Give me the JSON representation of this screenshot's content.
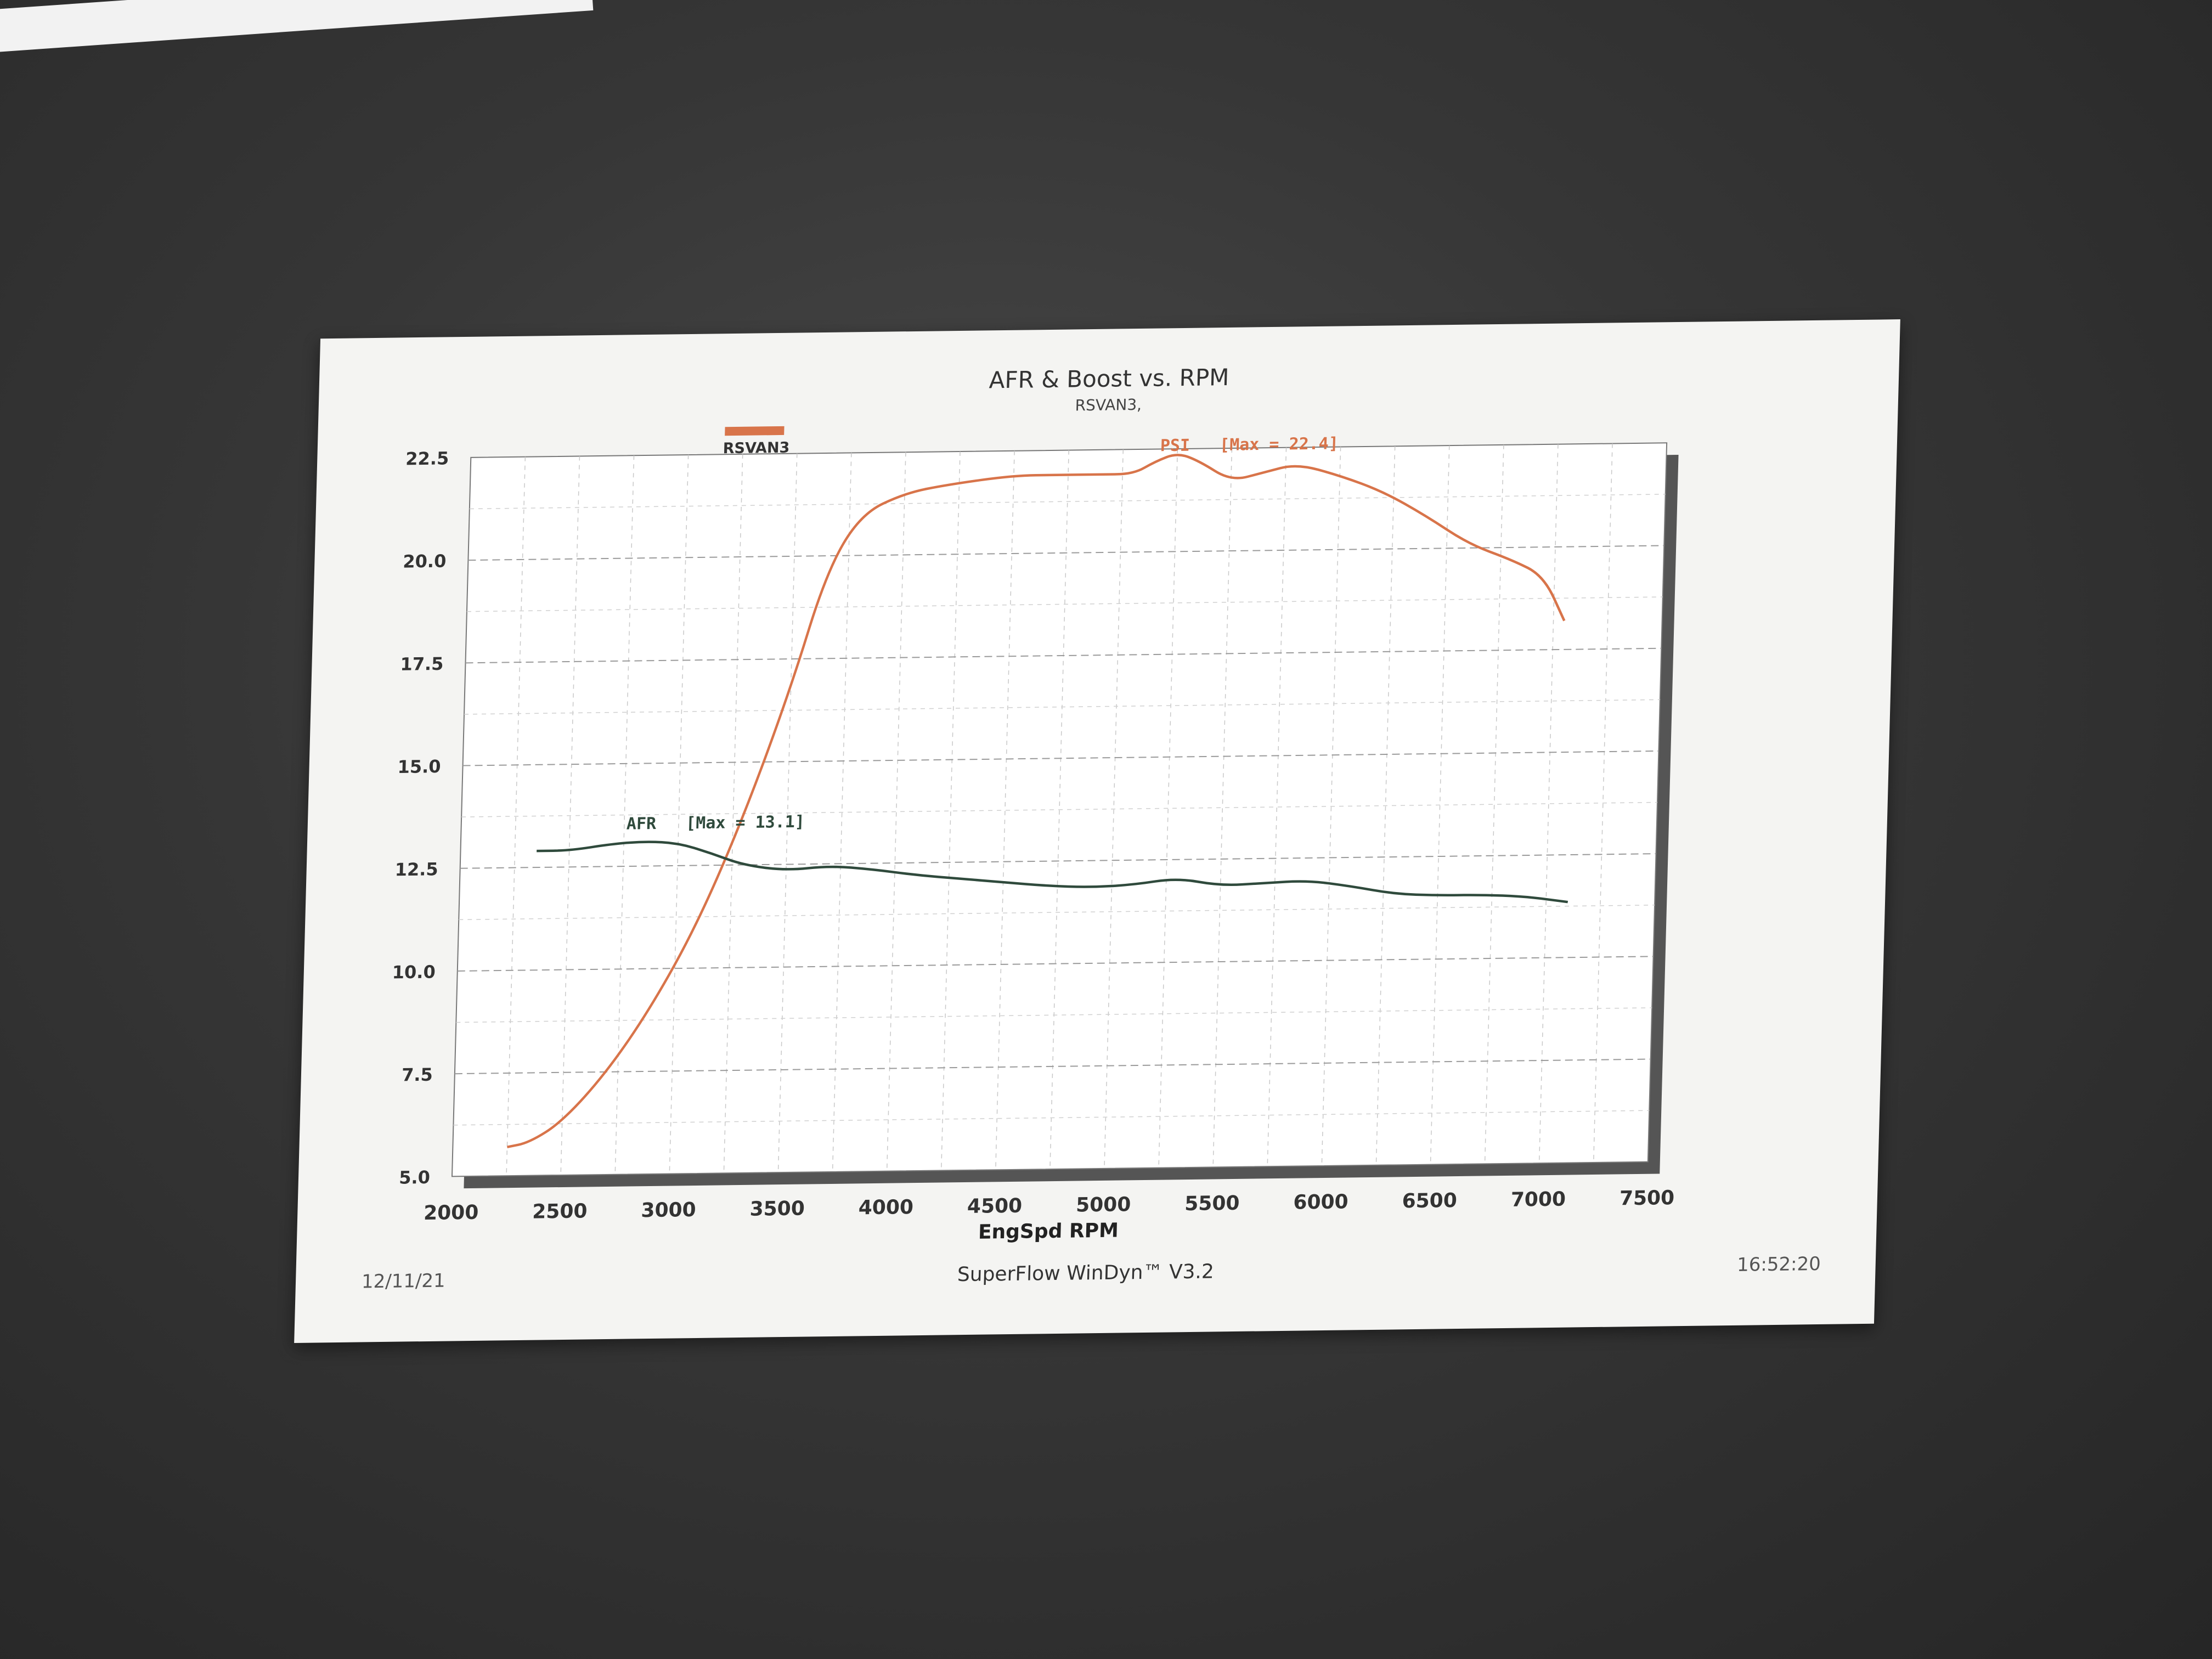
{
  "chart_data": {
    "type": "line",
    "title": "AFR & Boost vs. RPM",
    "subtitle": "RSVAN3,",
    "legend": {
      "label": "RSVAN3",
      "color": "#d8744a",
      "placement": "top-left"
    },
    "xlabel": "EngSpd RPM",
    "ylabel": "",
    "xlim": [
      2000,
      7500
    ],
    "ylim": [
      5.0,
      22.5
    ],
    "x_ticks": [
      "2000",
      "2500",
      "3000",
      "3500",
      "4000",
      "4500",
      "5000",
      "5500",
      "6000",
      "6500",
      "7000",
      "7500"
    ],
    "y_ticks": [
      "5.0",
      "7.5",
      "10.0",
      "12.5",
      "15.0",
      "17.5",
      "20.0",
      "22.5"
    ],
    "grid": true,
    "series": [
      {
        "name": "PSI",
        "color": "#d8744a",
        "annotation": "PSI   [Max = 22.4]",
        "points": [
          [
            2250,
            5.7
          ],
          [
            2350,
            5.8
          ],
          [
            2500,
            6.3
          ],
          [
            2700,
            7.5
          ],
          [
            2900,
            9.1
          ],
          [
            3100,
            11.1
          ],
          [
            3300,
            13.7
          ],
          [
            3500,
            16.8
          ],
          [
            3650,
            19.6
          ],
          [
            3800,
            21.0
          ],
          [
            4000,
            21.5
          ],
          [
            4200,
            21.7
          ],
          [
            4500,
            21.9
          ],
          [
            4700,
            21.9
          ],
          [
            4900,
            21.9
          ],
          [
            5050,
            21.9
          ],
          [
            5150,
            22.2
          ],
          [
            5250,
            22.4
          ],
          [
            5350,
            22.2
          ],
          [
            5500,
            21.7
          ],
          [
            5650,
            21.9
          ],
          [
            5800,
            22.1
          ],
          [
            6000,
            21.8
          ],
          [
            6200,
            21.4
          ],
          [
            6400,
            20.8
          ],
          [
            6600,
            20.1
          ],
          [
            6800,
            19.7
          ],
          [
            6950,
            19.3
          ],
          [
            7050,
            18.2
          ]
        ]
      },
      {
        "name": "AFR",
        "color": "#2f4a3c",
        "annotation": "AFR   [Max = 13.1]",
        "points": [
          [
            2350,
            12.9
          ],
          [
            2500,
            12.9
          ],
          [
            2700,
            13.05
          ],
          [
            2850,
            13.1
          ],
          [
            3000,
            13.05
          ],
          [
            3150,
            12.8
          ],
          [
            3300,
            12.5
          ],
          [
            3500,
            12.35
          ],
          [
            3700,
            12.45
          ],
          [
            3900,
            12.35
          ],
          [
            4100,
            12.2
          ],
          [
            4300,
            12.1
          ],
          [
            4500,
            12.0
          ],
          [
            4700,
            11.9
          ],
          [
            4900,
            11.85
          ],
          [
            5100,
            11.9
          ],
          [
            5300,
            12.05
          ],
          [
            5500,
            11.85
          ],
          [
            5700,
            11.9
          ],
          [
            5900,
            11.95
          ],
          [
            6100,
            11.8
          ],
          [
            6300,
            11.6
          ],
          [
            6500,
            11.55
          ],
          [
            6700,
            11.55
          ],
          [
            6900,
            11.5
          ],
          [
            7100,
            11.35
          ]
        ]
      }
    ]
  },
  "footer": {
    "date": "12/11/21",
    "software": "SuperFlow WinDyn™ V3.2",
    "time": "16:52:20"
  }
}
